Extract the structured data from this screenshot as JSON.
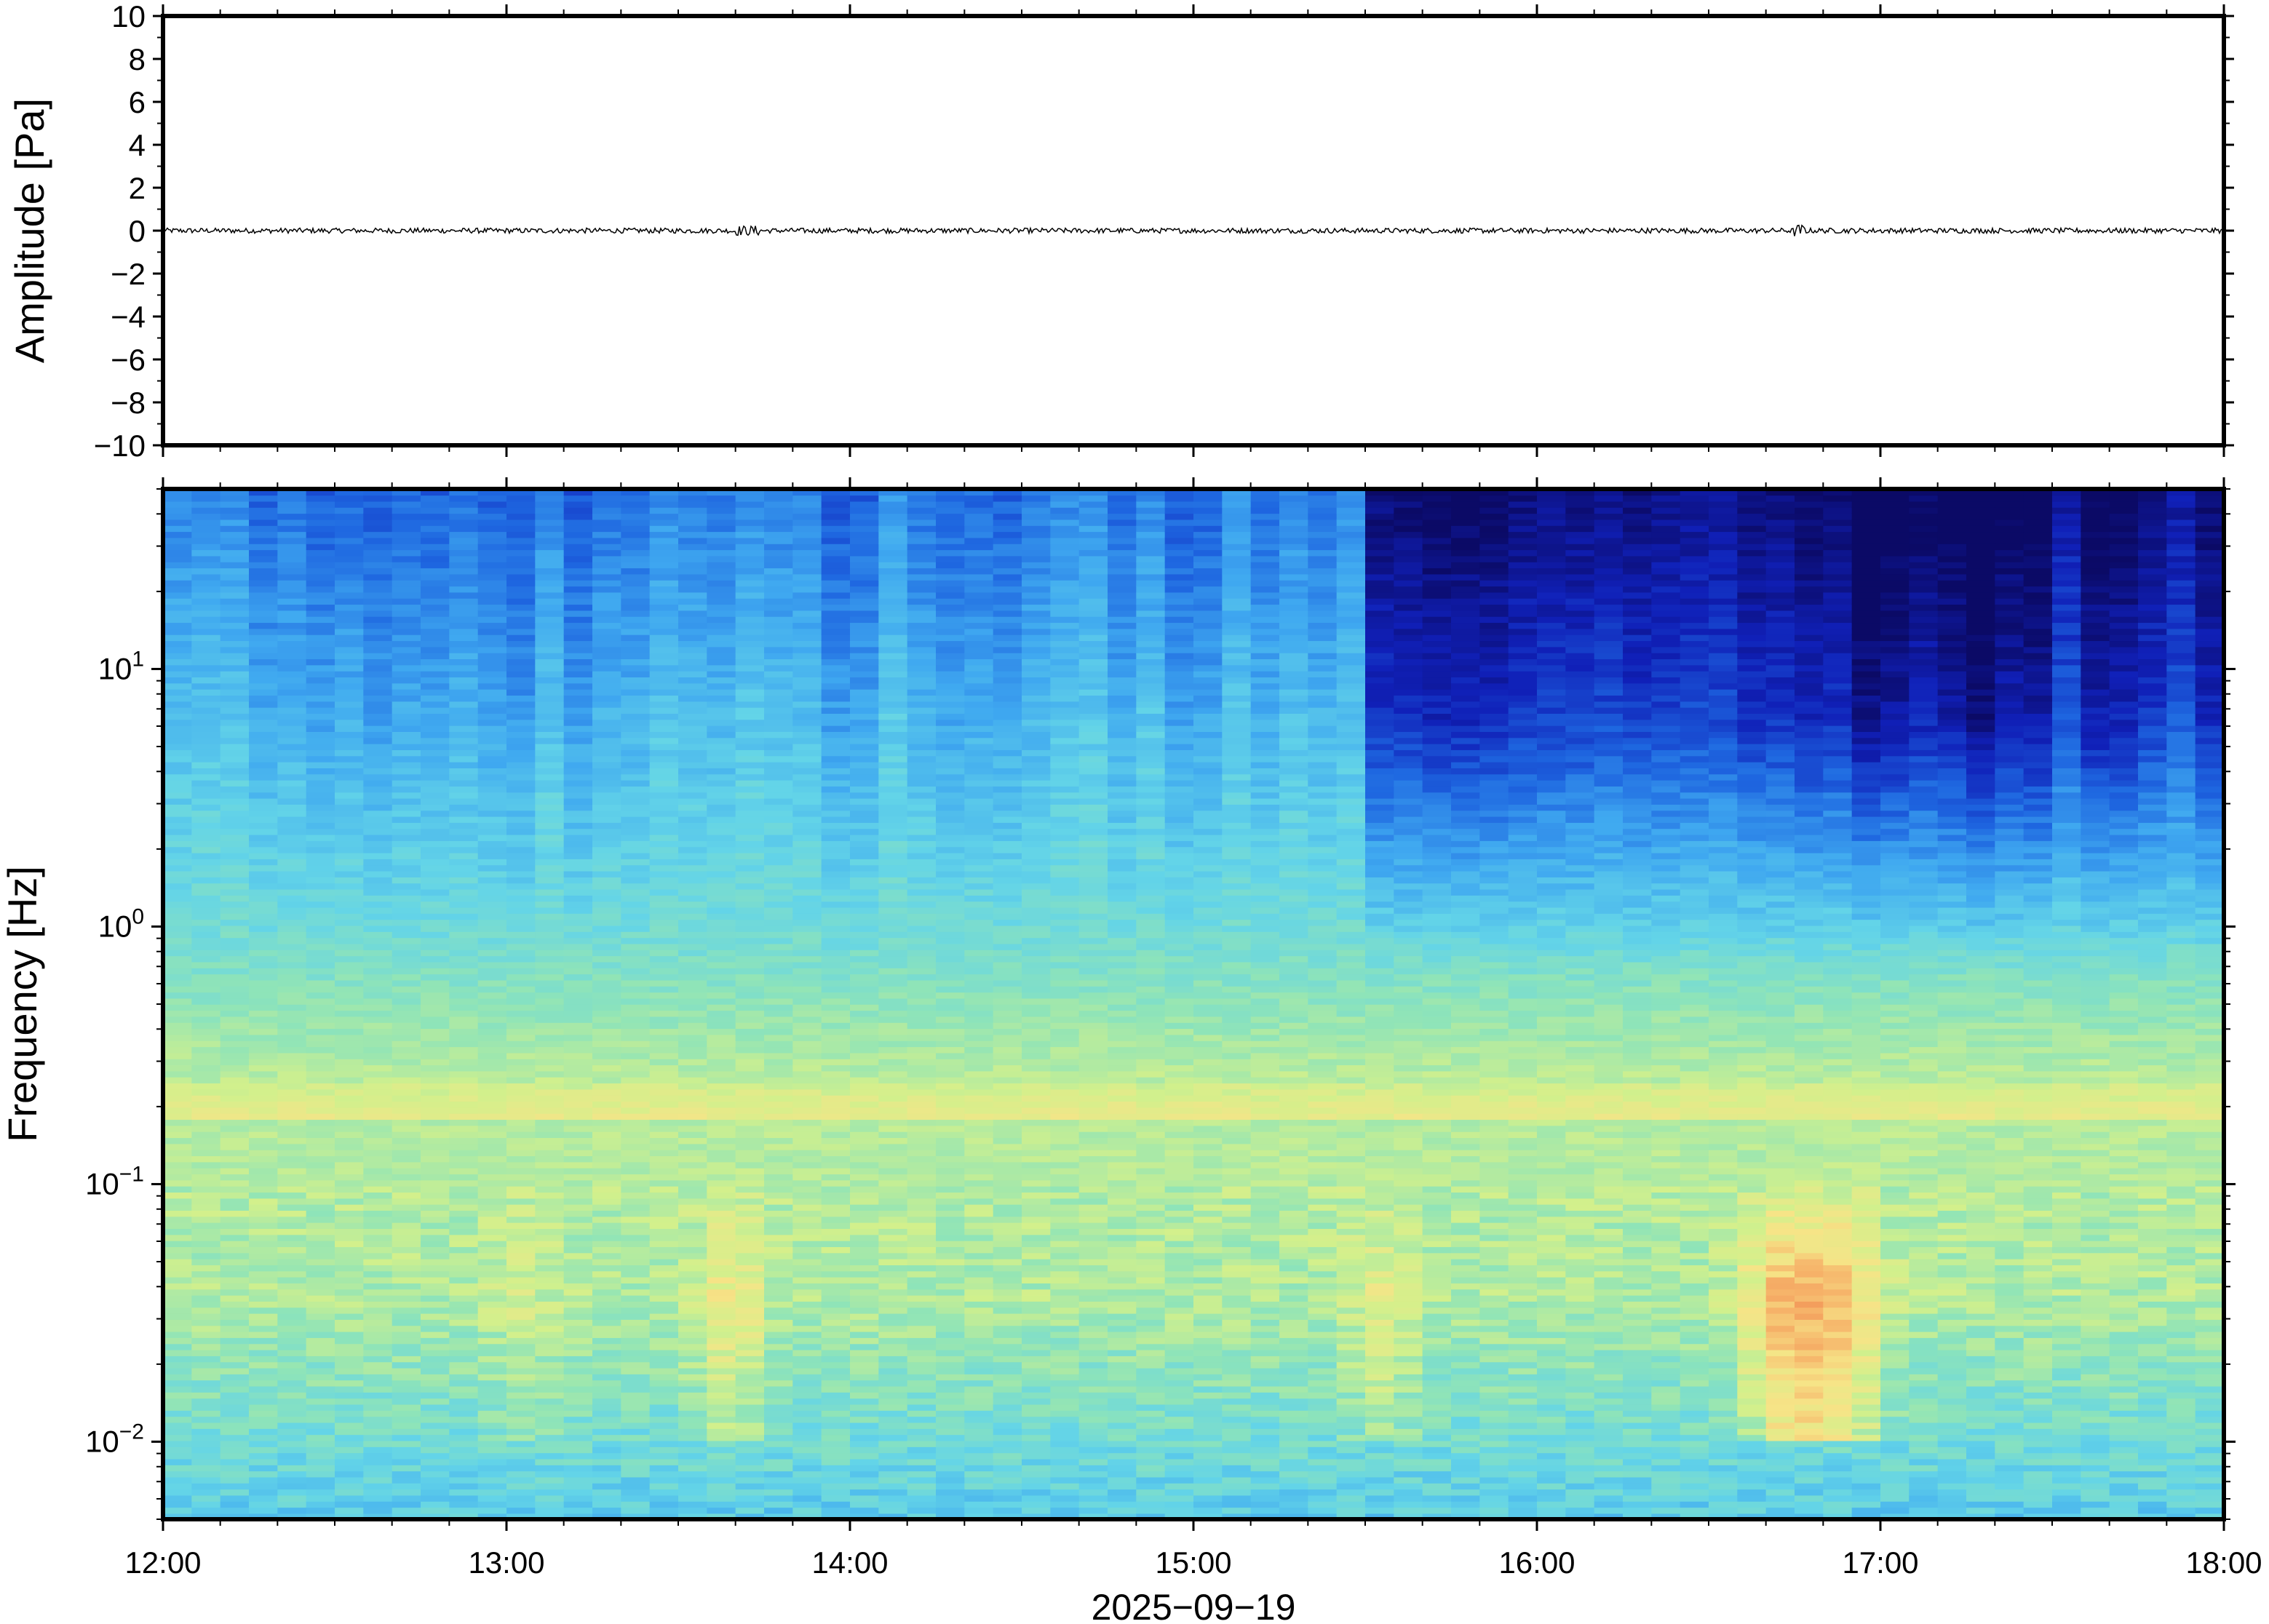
{
  "chart_data": [
    {
      "type": "line",
      "panel": "amplitude",
      "ylabel": "Amplitude [Pa]",
      "ylim": [
        -10,
        10
      ],
      "y_ticks": [
        10,
        8,
        6,
        4,
        2,
        0,
        -2,
        -4,
        -6,
        -8,
        -10
      ],
      "y_tick_labels": [
        "10",
        "8",
        "6",
        "4",
        "2",
        "0",
        "−2",
        "−4",
        "−6",
        "−8",
        "−10"
      ],
      "x_range": [
        "12:00",
        "18:00"
      ],
      "series": [
        {
          "approx_level": 0,
          "approx_peak_abs": 0.3,
          "line_color": "#000000"
        }
      ],
      "grid": false
    },
    {
      "type": "heatmap",
      "panel": "spectrogram",
      "ylabel": "Frequency [Hz]",
      "y_scale": "log",
      "ylim": [
        0.005,
        50
      ],
      "y_ticks": [
        {
          "base": "10",
          "exp": "1",
          "value": 10
        },
        {
          "base": "10",
          "exp": "0",
          "value": 1
        },
        {
          "base": "10",
          "exp": "−1",
          "value": 0.1
        },
        {
          "base": "10",
          "exp": "−2",
          "value": 0.01
        }
      ],
      "x_tick_labels": [
        "12:00",
        "13:00",
        "14:00",
        "15:00",
        "16:00",
        "17:00",
        "18:00"
      ],
      "xlabel": "2025−09−19",
      "colormap": [
        "#0b0a66",
        "#1020b8",
        "#1e66e0",
        "#3fa8f0",
        "#63d4e8",
        "#8fe4b8",
        "#d2f08c",
        "#f6e487",
        "#f6b46a",
        "#f08a50"
      ],
      "grid": false
    }
  ]
}
